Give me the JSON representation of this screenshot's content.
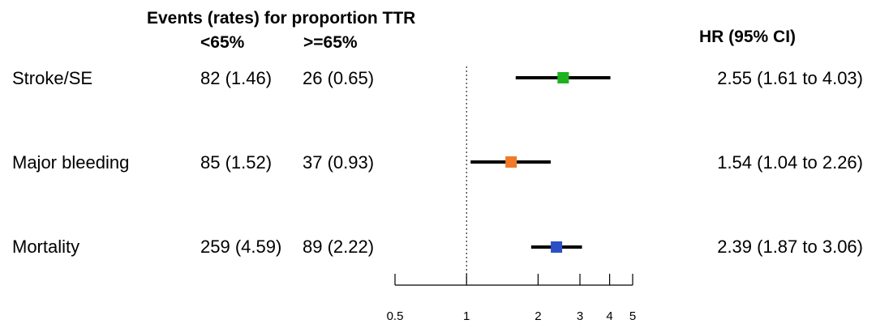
{
  "header": {
    "events_title": "Events (rates) for proportion TTR",
    "col_low": "<65%",
    "col_high": ">=65%",
    "hr_title": "HR (95% CI)"
  },
  "rows": [
    {
      "label": "Stroke/SE",
      "low": "82 (1.46)",
      "high": "26 (0.65)",
      "hr_text": "2.55 (1.61 to 4.03)"
    },
    {
      "label": "Major bleeding",
      "low": "85 (1.52)",
      "high": "37 (0.93)",
      "hr_text": "1.54 (1.04 to 2.26)"
    },
    {
      "label": "Mortality",
      "low": "259 (4.59)",
      "high": "89 (2.22)",
      "hr_text": "2.39 (1.87 to 3.06)"
    }
  ],
  "chart_data": {
    "type": "forest",
    "x_scale": "log",
    "x_ticks": [
      0.5,
      1,
      2,
      3,
      4,
      5
    ],
    "x_tick_labels": [
      "0.5",
      "1",
      "2",
      "3",
      "4",
      "5"
    ],
    "reference_line": 1,
    "xlim": [
      0.5,
      5
    ],
    "series": [
      {
        "name": "Stroke/SE",
        "hr": 2.55,
        "lower": 1.61,
        "upper": 4.03,
        "color": "#1db31d"
      },
      {
        "name": "Major bleeding",
        "hr": 1.54,
        "lower": 1.04,
        "upper": 2.26,
        "color": "#f07a28"
      },
      {
        "name": "Mortality",
        "hr": 2.39,
        "lower": 1.87,
        "upper": 3.06,
        "color": "#2b4fc7"
      }
    ]
  }
}
